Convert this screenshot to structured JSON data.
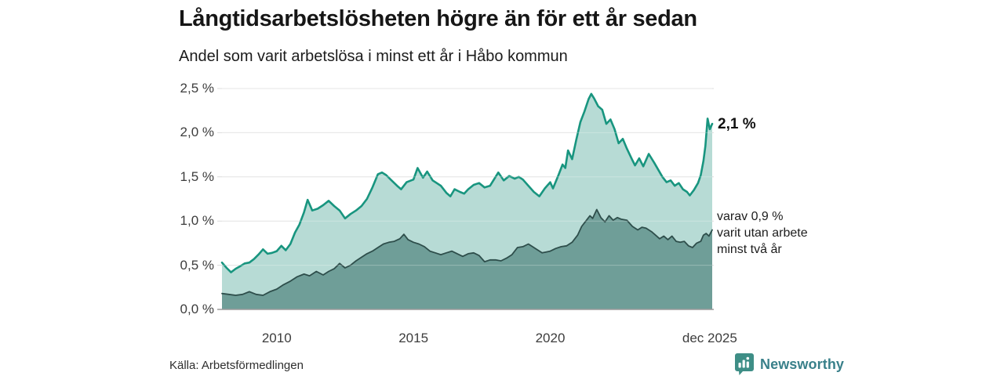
{
  "header": {
    "title": "Långtidsarbetslösheten högre än för ett år sedan",
    "subtitle": "Andel som varit arbetslösa i minst ett år i Håbo kommun"
  },
  "annotations": {
    "series1_end_label": "2,1 %",
    "series2_note_lines": [
      "varav 0,9 %",
      "varit utan arbete",
      "minst två år"
    ]
  },
  "footer": {
    "source": "Källa: Arbetsförmedlingen",
    "brand_name": "Newsworthy"
  },
  "colors": {
    "series1_line": "#18957f",
    "series1_fill": "#b7dbd5",
    "series2_line": "#2e4e4b",
    "series2_fill": "#6f9e98",
    "gridline": "#dcdcdc",
    "zero_line": "#9c9c9c",
    "grid_overlay": "rgba(255,255,255,0.28)",
    "brand_teal": "#3e8e86"
  },
  "chart_data": {
    "type": "area",
    "title": "Långtidsarbetslösheten högre än för ett år sedan",
    "subtitle": "Andel som varit arbetslösa i minst ett år i Håbo kommun",
    "unit": "%",
    "x_range": [
      2008.0,
      2025.92
    ],
    "ylim": [
      0,
      2.5
    ],
    "grid": true,
    "legend_position": "right-inline",
    "y_ticks": [
      {
        "label": "2,5 %",
        "value": 2.5
      },
      {
        "label": "2,0 %",
        "value": 2.0
      },
      {
        "label": "1,5 %",
        "value": 1.5
      },
      {
        "label": "1,0 %",
        "value": 1.0
      },
      {
        "label": "0,5 %",
        "value": 0.5
      },
      {
        "label": "0,0 %",
        "value": 0.0
      }
    ],
    "x_ticks": [
      {
        "label": "2010",
        "year": 2010
      },
      {
        "label": "2015",
        "year": 2015
      },
      {
        "label": "2020",
        "year": 2020
      },
      {
        "label": "dec 2025",
        "year": 2025.83
      }
    ],
    "series": [
      {
        "name": "Andel arbetslösa minst ett år",
        "latest_value": 2.1,
        "line_color": "#18957f",
        "fill_color": "#b7dbd5",
        "line_width": 2.6,
        "points": [
          [
            2008.0,
            0.53
          ],
          [
            2008.17,
            0.47
          ],
          [
            2008.33,
            0.42
          ],
          [
            2008.5,
            0.46
          ],
          [
            2008.67,
            0.49
          ],
          [
            2008.83,
            0.52
          ],
          [
            2009.0,
            0.53
          ],
          [
            2009.17,
            0.57
          ],
          [
            2009.33,
            0.62
          ],
          [
            2009.5,
            0.68
          ],
          [
            2009.67,
            0.63
          ],
          [
            2009.83,
            0.64
          ],
          [
            2010.0,
            0.66
          ],
          [
            2010.17,
            0.72
          ],
          [
            2010.33,
            0.67
          ],
          [
            2010.5,
            0.74
          ],
          [
            2010.67,
            0.87
          ],
          [
            2010.83,
            0.96
          ],
          [
            2011.0,
            1.1
          ],
          [
            2011.13,
            1.24
          ],
          [
            2011.3,
            1.12
          ],
          [
            2011.5,
            1.14
          ],
          [
            2011.7,
            1.18
          ],
          [
            2011.9,
            1.23
          ],
          [
            2012.1,
            1.17
          ],
          [
            2012.3,
            1.12
          ],
          [
            2012.5,
            1.03
          ],
          [
            2012.7,
            1.08
          ],
          [
            2012.9,
            1.12
          ],
          [
            2013.1,
            1.17
          ],
          [
            2013.3,
            1.25
          ],
          [
            2013.5,
            1.38
          ],
          [
            2013.7,
            1.53
          ],
          [
            2013.85,
            1.55
          ],
          [
            2014.0,
            1.52
          ],
          [
            2014.2,
            1.46
          ],
          [
            2014.4,
            1.4
          ],
          [
            2014.55,
            1.36
          ],
          [
            2014.75,
            1.44
          ],
          [
            2015.0,
            1.47
          ],
          [
            2015.15,
            1.6
          ],
          [
            2015.35,
            1.49
          ],
          [
            2015.5,
            1.56
          ],
          [
            2015.7,
            1.46
          ],
          [
            2015.85,
            1.43
          ],
          [
            2016.0,
            1.4
          ],
          [
            2016.2,
            1.32
          ],
          [
            2016.35,
            1.28
          ],
          [
            2016.5,
            1.36
          ],
          [
            2016.7,
            1.33
          ],
          [
            2016.85,
            1.31
          ],
          [
            2017.0,
            1.36
          ],
          [
            2017.2,
            1.41
          ],
          [
            2017.4,
            1.43
          ],
          [
            2017.6,
            1.38
          ],
          [
            2017.8,
            1.4
          ],
          [
            2018.0,
            1.5
          ],
          [
            2018.1,
            1.55
          ],
          [
            2018.3,
            1.46
          ],
          [
            2018.5,
            1.51
          ],
          [
            2018.7,
            1.48
          ],
          [
            2018.85,
            1.5
          ],
          [
            2019.0,
            1.47
          ],
          [
            2019.2,
            1.4
          ],
          [
            2019.4,
            1.33
          ],
          [
            2019.6,
            1.28
          ],
          [
            2019.8,
            1.37
          ],
          [
            2020.0,
            1.44
          ],
          [
            2020.1,
            1.37
          ],
          [
            2020.3,
            1.52
          ],
          [
            2020.45,
            1.64
          ],
          [
            2020.55,
            1.6
          ],
          [
            2020.65,
            1.8
          ],
          [
            2020.8,
            1.7
          ],
          [
            2020.95,
            1.92
          ],
          [
            2021.1,
            2.12
          ],
          [
            2021.25,
            2.24
          ],
          [
            2021.4,
            2.38
          ],
          [
            2021.5,
            2.44
          ],
          [
            2021.6,
            2.39
          ],
          [
            2021.75,
            2.3
          ],
          [
            2021.9,
            2.26
          ],
          [
            2022.05,
            2.1
          ],
          [
            2022.2,
            2.15
          ],
          [
            2022.35,
            2.04
          ],
          [
            2022.5,
            1.88
          ],
          [
            2022.65,
            1.93
          ],
          [
            2022.8,
            1.82
          ],
          [
            2023.0,
            1.69
          ],
          [
            2023.1,
            1.63
          ],
          [
            2023.25,
            1.71
          ],
          [
            2023.4,
            1.62
          ],
          [
            2023.6,
            1.76
          ],
          [
            2023.8,
            1.66
          ],
          [
            2023.95,
            1.58
          ],
          [
            2024.1,
            1.5
          ],
          [
            2024.25,
            1.44
          ],
          [
            2024.4,
            1.46
          ],
          [
            2024.55,
            1.4
          ],
          [
            2024.7,
            1.43
          ],
          [
            2024.85,
            1.36
          ],
          [
            2025.0,
            1.33
          ],
          [
            2025.1,
            1.29
          ],
          [
            2025.25,
            1.35
          ],
          [
            2025.4,
            1.43
          ],
          [
            2025.5,
            1.52
          ],
          [
            2025.6,
            1.68
          ],
          [
            2025.67,
            1.85
          ],
          [
            2025.75,
            2.16
          ],
          [
            2025.83,
            2.04
          ],
          [
            2025.92,
            2.1
          ]
        ]
      },
      {
        "name": "varav utan arbete minst två år",
        "latest_value": 0.9,
        "line_color": "#2e4e4b",
        "fill_color": "#6f9e98",
        "line_width": 1.8,
        "points": [
          [
            2008.0,
            0.18
          ],
          [
            2008.25,
            0.17
          ],
          [
            2008.5,
            0.16
          ],
          [
            2008.75,
            0.17
          ],
          [
            2009.0,
            0.2
          ],
          [
            2009.25,
            0.17
          ],
          [
            2009.5,
            0.16
          ],
          [
            2009.75,
            0.2
          ],
          [
            2010.0,
            0.23
          ],
          [
            2010.25,
            0.28
          ],
          [
            2010.5,
            0.32
          ],
          [
            2010.75,
            0.37
          ],
          [
            2011.0,
            0.4
          ],
          [
            2011.2,
            0.38
          ],
          [
            2011.45,
            0.43
          ],
          [
            2011.7,
            0.39
          ],
          [
            2011.9,
            0.43
          ],
          [
            2012.1,
            0.46
          ],
          [
            2012.3,
            0.52
          ],
          [
            2012.5,
            0.47
          ],
          [
            2012.7,
            0.5
          ],
          [
            2012.9,
            0.55
          ],
          [
            2013.1,
            0.59
          ],
          [
            2013.3,
            0.63
          ],
          [
            2013.5,
            0.66
          ],
          [
            2013.7,
            0.7
          ],
          [
            2013.9,
            0.74
          ],
          [
            2014.1,
            0.76
          ],
          [
            2014.3,
            0.77
          ],
          [
            2014.5,
            0.8
          ],
          [
            2014.65,
            0.85
          ],
          [
            2014.8,
            0.79
          ],
          [
            2015.0,
            0.76
          ],
          [
            2015.2,
            0.74
          ],
          [
            2015.4,
            0.71
          ],
          [
            2015.6,
            0.66
          ],
          [
            2015.8,
            0.64
          ],
          [
            2016.0,
            0.62
          ],
          [
            2016.2,
            0.64
          ],
          [
            2016.4,
            0.66
          ],
          [
            2016.6,
            0.63
          ],
          [
            2016.8,
            0.6
          ],
          [
            2017.0,
            0.63
          ],
          [
            2017.2,
            0.64
          ],
          [
            2017.4,
            0.61
          ],
          [
            2017.6,
            0.54
          ],
          [
            2017.8,
            0.56
          ],
          [
            2018.0,
            0.56
          ],
          [
            2018.2,
            0.55
          ],
          [
            2018.4,
            0.58
          ],
          [
            2018.6,
            0.62
          ],
          [
            2018.8,
            0.7
          ],
          [
            2019.0,
            0.71
          ],
          [
            2019.2,
            0.74
          ],
          [
            2019.35,
            0.71
          ],
          [
            2019.5,
            0.68
          ],
          [
            2019.7,
            0.64
          ],
          [
            2019.85,
            0.65
          ],
          [
            2020.0,
            0.66
          ],
          [
            2020.2,
            0.69
          ],
          [
            2020.4,
            0.71
          ],
          [
            2020.6,
            0.72
          ],
          [
            2020.8,
            0.76
          ],
          [
            2021.0,
            0.84
          ],
          [
            2021.15,
            0.94
          ],
          [
            2021.3,
            1.0
          ],
          [
            2021.45,
            1.06
          ],
          [
            2021.55,
            1.03
          ],
          [
            2021.7,
            1.13
          ],
          [
            2021.85,
            1.04
          ],
          [
            2022.0,
            0.99
          ],
          [
            2022.15,
            1.06
          ],
          [
            2022.3,
            1.01
          ],
          [
            2022.45,
            1.04
          ],
          [
            2022.6,
            1.02
          ],
          [
            2022.8,
            1.01
          ],
          [
            2023.0,
            0.94
          ],
          [
            2023.2,
            0.9
          ],
          [
            2023.35,
            0.93
          ],
          [
            2023.5,
            0.92
          ],
          [
            2023.7,
            0.88
          ],
          [
            2023.85,
            0.84
          ],
          [
            2024.0,
            0.8
          ],
          [
            2024.15,
            0.83
          ],
          [
            2024.3,
            0.79
          ],
          [
            2024.45,
            0.83
          ],
          [
            2024.6,
            0.77
          ],
          [
            2024.75,
            0.76
          ],
          [
            2024.9,
            0.77
          ],
          [
            2025.05,
            0.72
          ],
          [
            2025.2,
            0.7
          ],
          [
            2025.35,
            0.75
          ],
          [
            2025.5,
            0.77
          ],
          [
            2025.6,
            0.84
          ],
          [
            2025.7,
            0.86
          ],
          [
            2025.8,
            0.83
          ],
          [
            2025.92,
            0.9
          ]
        ]
      }
    ]
  }
}
